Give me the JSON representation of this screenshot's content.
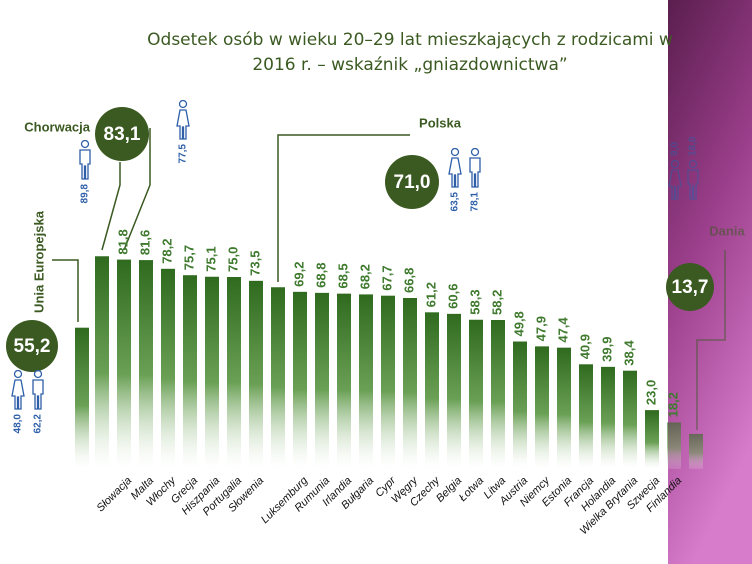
{
  "chart_data": {
    "type": "bar",
    "title": "Odsetek osób w wieku 20–29 lat mieszkających z rodzicami w 2016 r. – wskaźnik „gniazdownictwa”",
    "color": "#3f7a2e",
    "categories": [
      null,
      null,
      "Słowacja",
      "Malta",
      "Włochy",
      "Grecja",
      "Hiszpania",
      "Portugalia",
      "Słowenia",
      null,
      "Luksemburg",
      "Rumunia",
      "Irlandia",
      "Bułgaria",
      "Cypr",
      "Węgry",
      "Czechy",
      "Belgia",
      "Łotwa",
      "Litwa",
      "Austria",
      "Niemcy",
      "Estonia",
      "Francja",
      "Holandia",
      "Wielka Brytania",
      "Szwecja",
      "Finlandia",
      null
    ],
    "values": [
      55.2,
      83.1,
      81.8,
      81.6,
      78.2,
      75.7,
      75.1,
      75.0,
      73.5,
      71.0,
      69.2,
      68.8,
      68.5,
      68.2,
      67.7,
      66.8,
      61.2,
      60.6,
      58.3,
      58.2,
      49.8,
      47.9,
      47.4,
      40.9,
      39.9,
      38.4,
      23.0,
      18.2,
      13.7
    ],
    "value_labels": [
      "55,2",
      "83,1",
      "81,8",
      "81,6",
      "78,2",
      "75,7",
      "75,1",
      "75,0",
      "73,5",
      "71,0",
      "69,2",
      "68,8",
      "68,5",
      "68,2",
      "67,7",
      "66,8",
      "61,2",
      "60,6",
      "58,3",
      "58,2",
      "49,8",
      "47,9",
      "47,4",
      "40,9",
      "39,9",
      "38,4",
      "23,0",
      "18,2",
      "13,7"
    ],
    "callouts": [
      {
        "name": "Unia Europejska",
        "women": 48.0,
        "women_label": "48,0",
        "men": 62.2,
        "men_label": "62,2"
      },
      {
        "name": "Chorwacja",
        "women": 77.5,
        "women_label": "77,5",
        "men": 89.8,
        "men_label": "89,8"
      },
      {
        "name": "Polska",
        "women": 63.5,
        "women_label": "63,5",
        "men": 78.1,
        "men_label": "78,1"
      },
      {
        "name": "Dania",
        "women": 9.0,
        "women_label": "9,0",
        "men": 18.0,
        "men_label": "18,0"
      }
    ]
  }
}
